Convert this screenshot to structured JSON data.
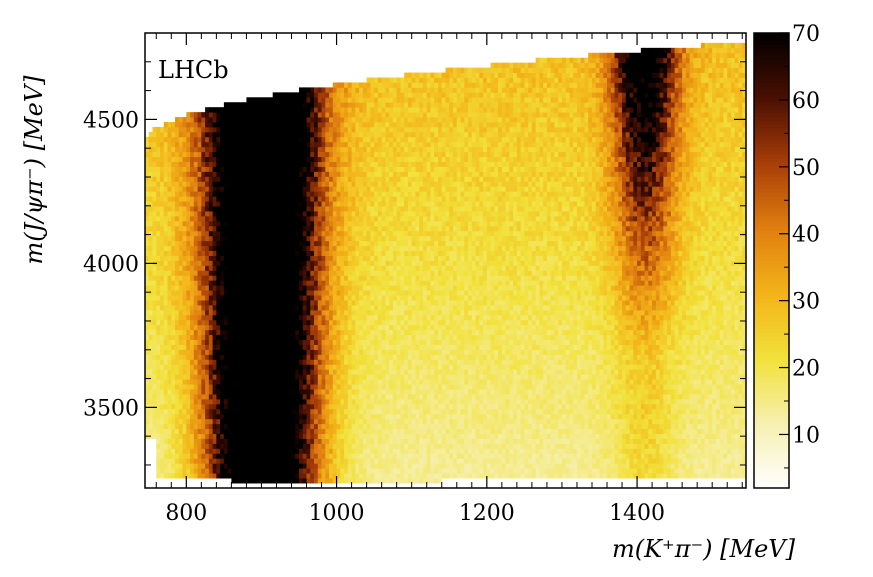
{
  "chart_data": {
    "type": "heatmap",
    "experiment_label": "LHCb",
    "xlabel": "m(K⁺π⁻) [MeV]",
    "ylabel": "m(J/ψπ⁻) [MeV]",
    "xlim": [
      745,
      1545
    ],
    "ylim": [
      3220,
      4800
    ],
    "x_ticks": [
      "800",
      "1000",
      "1200",
      "1400"
    ],
    "y_ticks": [
      "3500",
      "4000",
      "4500"
    ],
    "colorbar_range": [
      2,
      70
    ],
    "colorbar_ticks": [
      "10",
      "20",
      "30",
      "40",
      "50",
      "60",
      "70"
    ],
    "colormap": [
      "#ffffff",
      "#f6f0b0",
      "#f2e13a",
      "#f3b318",
      "#e07f10",
      "#a83e08",
      "#4a0f02",
      "#000000"
    ],
    "grid": false,
    "features": [
      {
        "description": "K*(892) band",
        "x_center": 900,
        "x_width": 50,
        "y_range": [
          3250,
          4750
        ],
        "z_approx": 70
      },
      {
        "description": "K2*(1430) band",
        "x_center": 1410,
        "x_width": 30,
        "y_range": [
          4000,
          4750
        ],
        "z_approx": 55
      },
      {
        "description": "Background floor",
        "z_approx": 25
      }
    ]
  }
}
